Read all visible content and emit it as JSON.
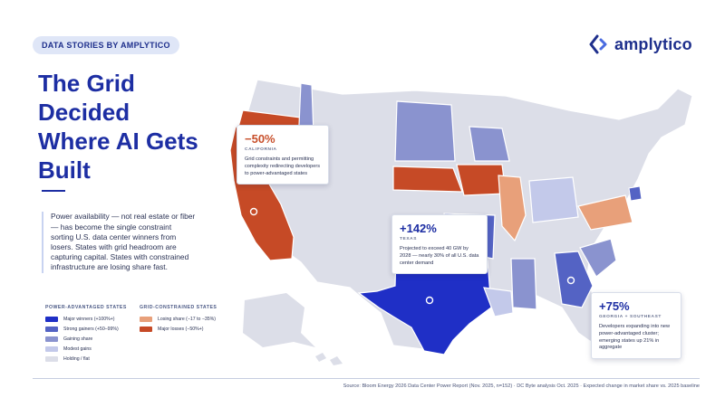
{
  "tag": "DATA STORIES  BY AMPLYTICO",
  "brand": {
    "name": "amplytico",
    "icon": "chevron-bracket-icon",
    "color": "#1e2f8c"
  },
  "headline": "The Grid Decided Where AI Gets Built",
  "intro": "Power availability — not real estate or fiber — has become the single constraint sorting U.S. data center winners from losers. States with grid headroom are capturing capital. States with constrained infrastructure are losing share fast.",
  "legend": {
    "advantaged": {
      "title": "POWER-ADVANTAGED STATES",
      "items": [
        {
          "label": "Major winners (+100%+)",
          "color": "#1f2fc6"
        },
        {
          "label": "Strong gainers (+50–99%)",
          "color": "#5463c4"
        },
        {
          "label": "Gaining share",
          "color": "#8a93cf"
        },
        {
          "label": "Modest gains",
          "color": "#c3c9ea"
        },
        {
          "label": "Holding / flat",
          "color": "#dcdee8"
        }
      ]
    },
    "constrained": {
      "title": "GRID-CONSTRAINED STATES",
      "items": [
        {
          "label": "Losing share (−17 to −35%)",
          "color": "#e8a07a"
        },
        {
          "label": "Major losses (−50%+)",
          "color": "#c64a26"
        }
      ]
    }
  },
  "callouts": {
    "california": {
      "value": "−50%",
      "region": "CALIFORNIA",
      "text": "Grid constraints and permitting complexity redirecting developers to power-advantaged states"
    },
    "texas": {
      "value": "+142%",
      "region": "TEXAS",
      "text": "Projected to exceed 40 GW by 2028 — nearly 30% of all U.S. data center demand"
    },
    "georgia": {
      "value": "+75%",
      "region": "GEORGIA + SOUTHEAST",
      "text": "Developers expanding into new power-advantaged cluster; emerging states up 21% in aggregate"
    }
  },
  "source": "Source: Bloom Energy 2026 Data Center Power Report (Nov. 2025, n=152) · DC Byte analysis Oct. 2025 · Expected change in market share vs. 2025 baseline"
}
